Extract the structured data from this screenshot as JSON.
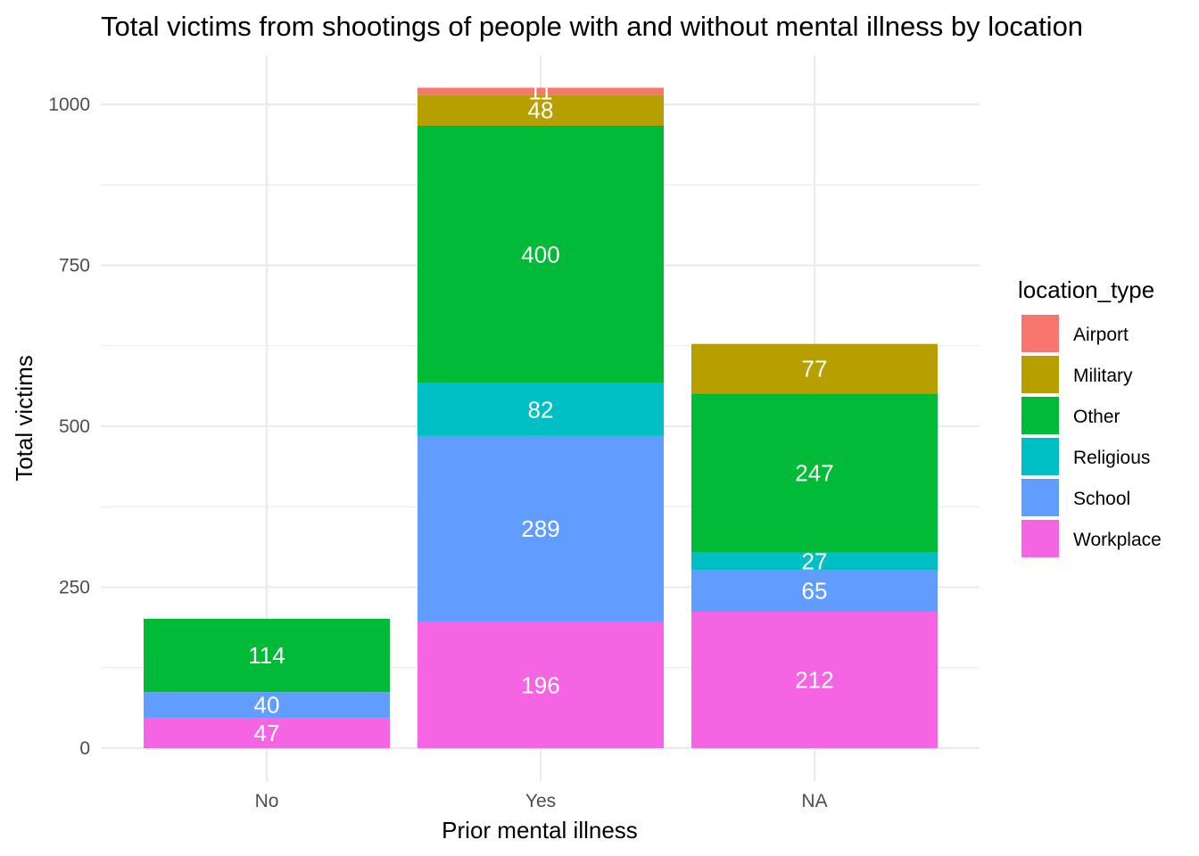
{
  "chart_data": {
    "type": "bar",
    "stacked": true,
    "title": "Total victims from shootings of people with and without mental illness by location",
    "xlabel": "Prior mental illness",
    "ylabel": "Total victims",
    "categories": [
      "No",
      "Yes",
      "NA"
    ],
    "ylim": [
      0,
      1080
    ],
    "yticks": [
      0,
      250,
      500,
      750,
      1000
    ],
    "ytick_labels": [
      "0",
      "250",
      "500",
      "750",
      "1000"
    ],
    "grid": true,
    "legend": {
      "title": "location_type",
      "placement": "right"
    },
    "stack_order": [
      "Workplace",
      "School",
      "Religious",
      "Other",
      "Military",
      "Airport"
    ],
    "legend_order": [
      "Airport",
      "Military",
      "Other",
      "Religious",
      "School",
      "Workplace"
    ],
    "series": [
      {
        "name": "Airport",
        "color": "#F8766D",
        "values": [
          0,
          11,
          0
        ],
        "labels": [
          "",
          "11",
          ""
        ]
      },
      {
        "name": "Military",
        "color": "#B79F00",
        "values": [
          0,
          48,
          77
        ],
        "labels": [
          "",
          "48",
          "77"
        ]
      },
      {
        "name": "Other",
        "color": "#00BA38",
        "values": [
          114,
          400,
          247
        ],
        "labels": [
          "114",
          "400",
          "247"
        ]
      },
      {
        "name": "Religious",
        "color": "#00BFC4",
        "values": [
          0,
          82,
          27
        ],
        "labels": [
          "",
          "82",
          "27"
        ]
      },
      {
        "name": "School",
        "color": "#619CFF",
        "values": [
          40,
          289,
          65
        ],
        "labels": [
          "40",
          "289",
          "65"
        ]
      },
      {
        "name": "Workplace",
        "color": "#F564E3",
        "values": [
          47,
          196,
          212
        ],
        "labels": [
          "47",
          "196",
          "212"
        ]
      }
    ]
  }
}
